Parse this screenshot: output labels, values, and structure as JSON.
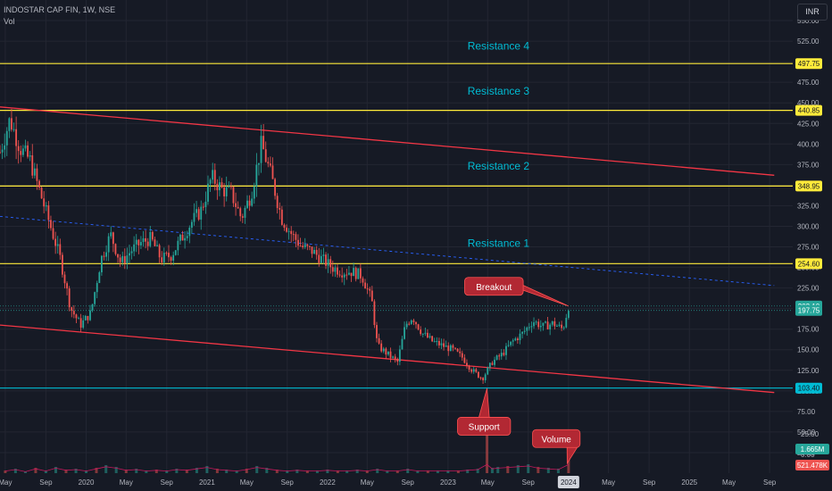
{
  "header": {
    "symbol_line": "INDOSTAR CAP FIN, 1W, NSE",
    "vol_label": "Vol"
  },
  "currency_button": "INR",
  "colors": {
    "background": "#161a25",
    "grid": "#232632",
    "up": "#26a69a",
    "down": "#ef5350",
    "resistance": "#ffeb3b",
    "support": "#00bcd4",
    "trendline": "#f23645",
    "midline": "#2962ff",
    "annotation_text": "#00bcd4",
    "callout_fill": "#b22833",
    "callout_border": "#ff5252"
  },
  "chart_data": {
    "type": "candlestick",
    "title": "INDOSTAR CAP FIN, 1W, NSE",
    "ylim": [
      0,
      575
    ],
    "yticks": [
      0,
      25,
      50,
      75,
      100,
      125,
      150,
      175,
      200,
      225,
      250,
      275,
      300,
      325,
      350,
      375,
      400,
      425,
      450,
      475,
      500,
      525,
      550
    ],
    "xlim": [
      "2019-04-15",
      "2025-11-10"
    ],
    "xticks": [
      {
        "label": "May",
        "date": "2019-05-01"
      },
      {
        "label": "Sep",
        "date": "2019-09-01"
      },
      {
        "label": "2020",
        "date": "2020-01-01"
      },
      {
        "label": "May",
        "date": "2020-05-01"
      },
      {
        "label": "Sep",
        "date": "2020-09-01"
      },
      {
        "label": "2021",
        "date": "2021-01-01"
      },
      {
        "label": "May",
        "date": "2021-05-01"
      },
      {
        "label": "Sep",
        "date": "2021-09-01"
      },
      {
        "label": "2022",
        "date": "2022-01-01"
      },
      {
        "label": "May",
        "date": "2022-05-01"
      },
      {
        "label": "Sep",
        "date": "2022-09-01"
      },
      {
        "label": "2023",
        "date": "2023-01-01"
      },
      {
        "label": "May",
        "date": "2023-05-01"
      },
      {
        "label": "Sep",
        "date": "2023-09-01"
      },
      {
        "label": "2024",
        "date": "2024-01-01"
      },
      {
        "label": "May",
        "date": "2024-05-01"
      },
      {
        "label": "Sep",
        "date": "2024-09-01"
      },
      {
        "label": "2025",
        "date": "2025-01-01"
      },
      {
        "label": "May",
        "date": "2025-05-01"
      },
      {
        "label": "Sep",
        "date": "2025-09-01"
      }
    ],
    "highlighted_xtick": "2024",
    "price_path": [
      {
        "date": "2019-04-15",
        "close": 390
      },
      {
        "date": "2019-05-15",
        "close": 430
      },
      {
        "date": "2019-06-15",
        "close": 395
      },
      {
        "date": "2019-07-15",
        "close": 380
      },
      {
        "date": "2019-08-15",
        "close": 340
      },
      {
        "date": "2019-09-15",
        "close": 300
      },
      {
        "date": "2019-10-15",
        "close": 260
      },
      {
        "date": "2019-11-15",
        "close": 200
      },
      {
        "date": "2019-12-15",
        "close": 180
      },
      {
        "date": "2020-01-15",
        "close": 195
      },
      {
        "date": "2020-02-15",
        "close": 260
      },
      {
        "date": "2020-03-15",
        "close": 290
      },
      {
        "date": "2020-04-15",
        "close": 255
      },
      {
        "date": "2020-05-15",
        "close": 270
      },
      {
        "date": "2020-06-15",
        "close": 280
      },
      {
        "date": "2020-07-15",
        "close": 285
      },
      {
        "date": "2020-08-15",
        "close": 260
      },
      {
        "date": "2020-09-15",
        "close": 265
      },
      {
        "date": "2020-10-15",
        "close": 285
      },
      {
        "date": "2020-11-15",
        "close": 305
      },
      {
        "date": "2020-12-15",
        "close": 320
      },
      {
        "date": "2021-01-15",
        "close": 360
      },
      {
        "date": "2021-02-15",
        "close": 345
      },
      {
        "date": "2021-03-15",
        "close": 340
      },
      {
        "date": "2021-04-15",
        "close": 310
      },
      {
        "date": "2021-05-15",
        "close": 340
      },
      {
        "date": "2021-06-15",
        "close": 400
      },
      {
        "date": "2021-07-15",
        "close": 360
      },
      {
        "date": "2021-08-15",
        "close": 310
      },
      {
        "date": "2021-09-15",
        "close": 290
      },
      {
        "date": "2021-10-15",
        "close": 275
      },
      {
        "date": "2021-11-15",
        "close": 270
      },
      {
        "date": "2021-12-15",
        "close": 260
      },
      {
        "date": "2022-01-15",
        "close": 250
      },
      {
        "date": "2022-02-15",
        "close": 245
      },
      {
        "date": "2022-03-15",
        "close": 245
      },
      {
        "date": "2022-04-15",
        "close": 240
      },
      {
        "date": "2022-05-15",
        "close": 210
      },
      {
        "date": "2022-06-01",
        "close": 155
      },
      {
        "date": "2022-07-01",
        "close": 145
      },
      {
        "date": "2022-08-01",
        "close": 135
      },
      {
        "date": "2022-08-25",
        "close": 180
      },
      {
        "date": "2022-09-15",
        "close": 190
      },
      {
        "date": "2022-10-15",
        "close": 170
      },
      {
        "date": "2022-11-15",
        "close": 160
      },
      {
        "date": "2022-12-15",
        "close": 155
      },
      {
        "date": "2023-01-15",
        "close": 150
      },
      {
        "date": "2023-02-15",
        "close": 140
      },
      {
        "date": "2023-03-15",
        "close": 125
      },
      {
        "date": "2023-04-15",
        "close": 115
      },
      {
        "date": "2023-05-15",
        "close": 135
      },
      {
        "date": "2023-06-15",
        "close": 145
      },
      {
        "date": "2023-07-15",
        "close": 160
      },
      {
        "date": "2023-08-15",
        "close": 170
      },
      {
        "date": "2023-09-15",
        "close": 185
      },
      {
        "date": "2023-10-15",
        "close": 178
      },
      {
        "date": "2023-11-15",
        "close": 182
      },
      {
        "date": "2023-12-15",
        "close": 175
      },
      {
        "date": "2024-01-01",
        "close": 203.1
      }
    ],
    "volume_bars": [
      {
        "date": "2019-05-01",
        "value": 0.3
      },
      {
        "date": "2019-06-01",
        "value": 0.5
      },
      {
        "date": "2019-07-01",
        "value": 0.2
      },
      {
        "date": "2019-08-01",
        "value": 0.6
      },
      {
        "date": "2019-09-01",
        "value": 0.3
      },
      {
        "date": "2019-10-01",
        "value": 0.7
      },
      {
        "date": "2019-11-01",
        "value": 0.4
      },
      {
        "date": "2019-12-01",
        "value": 0.5
      },
      {
        "date": "2020-01-01",
        "value": 0.3
      },
      {
        "date": "2020-02-01",
        "value": 0.6
      },
      {
        "date": "2020-03-01",
        "value": 0.9
      },
      {
        "date": "2020-04-01",
        "value": 0.7
      },
      {
        "date": "2020-05-01",
        "value": 0.4
      },
      {
        "date": "2020-06-01",
        "value": 0.5
      },
      {
        "date": "2020-07-01",
        "value": 0.3
      },
      {
        "date": "2020-08-01",
        "value": 0.4
      },
      {
        "date": "2020-09-01",
        "value": 0.3
      },
      {
        "date": "2020-10-01",
        "value": 0.5
      },
      {
        "date": "2020-11-01",
        "value": 0.4
      },
      {
        "date": "2020-12-01",
        "value": 0.6
      },
      {
        "date": "2021-01-01",
        "value": 0.8
      },
      {
        "date": "2021-02-01",
        "value": 0.5
      },
      {
        "date": "2021-03-01",
        "value": 0.4
      },
      {
        "date": "2021-04-01",
        "value": 0.3
      },
      {
        "date": "2021-05-01",
        "value": 0.5
      },
      {
        "date": "2021-06-01",
        "value": 0.8
      },
      {
        "date": "2021-07-01",
        "value": 0.6
      },
      {
        "date": "2021-08-01",
        "value": 0.4
      },
      {
        "date": "2021-09-01",
        "value": 0.3
      },
      {
        "date": "2021-10-01",
        "value": 0.4
      },
      {
        "date": "2021-11-01",
        "value": 0.3
      },
      {
        "date": "2021-12-01",
        "value": 0.3
      },
      {
        "date": "2022-01-01",
        "value": 0.4
      },
      {
        "date": "2022-02-01",
        "value": 0.3
      },
      {
        "date": "2022-03-01",
        "value": 0.3
      },
      {
        "date": "2022-04-01",
        "value": 0.4
      },
      {
        "date": "2022-05-01",
        "value": 0.3
      },
      {
        "date": "2022-06-01",
        "value": 0.5
      },
      {
        "date": "2022-07-01",
        "value": 0.3
      },
      {
        "date": "2022-08-01",
        "value": 0.3
      },
      {
        "date": "2022-09-01",
        "value": 0.5
      },
      {
        "date": "2022-10-01",
        "value": 0.3
      },
      {
        "date": "2022-11-01",
        "value": 0.3
      },
      {
        "date": "2022-12-01",
        "value": 0.3
      },
      {
        "date": "2023-01-01",
        "value": 0.3
      },
      {
        "date": "2023-02-01",
        "value": 0.3
      },
      {
        "date": "2023-03-01",
        "value": 0.4
      },
      {
        "date": "2023-04-01",
        "value": 0.5
      },
      {
        "date": "2023-04-29",
        "value": 5.5
      },
      {
        "date": "2023-05-15",
        "value": 0.6
      },
      {
        "date": "2023-06-01",
        "value": 0.7
      },
      {
        "date": "2023-07-01",
        "value": 0.8
      },
      {
        "date": "2023-08-01",
        "value": 0.9
      },
      {
        "date": "2023-09-01",
        "value": 1.0
      },
      {
        "date": "2023-10-01",
        "value": 0.7
      },
      {
        "date": "2023-11-01",
        "value": 0.6
      },
      {
        "date": "2023-12-01",
        "value": 0.5
      },
      {
        "date": "2024-01-01",
        "value": 1.665
      }
    ],
    "volume_ylim": [
      0,
      6
    ],
    "horizontal_levels": [
      {
        "price": 497.75,
        "label": "497.75",
        "kind": "resistance"
      },
      {
        "price": 440.85,
        "label": "440.85",
        "kind": "resistance"
      },
      {
        "price": 348.95,
        "label": "348.95",
        "kind": "resistance"
      },
      {
        "price": 254.6,
        "label": "254.60",
        "kind": "resistance"
      },
      {
        "price": 103.4,
        "label": "103.40",
        "kind": "support"
      }
    ],
    "price_tags": [
      {
        "price": 203.1,
        "label": "203.10",
        "color": "#26a69a"
      },
      {
        "price": 197.75,
        "label": "197.75",
        "color": "#26a69a"
      }
    ],
    "volume_tags": [
      {
        "label": "1.665M",
        "color": "#26a69a"
      },
      {
        "label": "521.478K",
        "color": "#ef5350"
      }
    ],
    "volume_axis_labels": [
      "25.00",
      "0.00"
    ],
    "trendlines": [
      {
        "from": {
          "date": "2019-04-15",
          "price": 445
        },
        "to": {
          "date": "2025-09-15",
          "price": 362
        },
        "style": "solid"
      },
      {
        "from": {
          "date": "2019-04-15",
          "price": 180
        },
        "to": {
          "date": "2025-09-15",
          "price": 98
        },
        "style": "solid"
      },
      {
        "from": {
          "date": "2019-04-15",
          "price": 312
        },
        "to": {
          "date": "2025-09-15",
          "price": 228
        },
        "style": "dashed"
      }
    ],
    "text_annotations": [
      {
        "text": "Resistance 4",
        "date": "2023-03-01",
        "price": 515
      },
      {
        "text": "Resistance 3",
        "date": "2023-03-01",
        "price": 460
      },
      {
        "text": "Resistance 2",
        "date": "2023-03-01",
        "price": 369
      },
      {
        "text": "Resistance 1",
        "date": "2023-03-01",
        "price": 275
      }
    ],
    "callouts": [
      {
        "text": "Breakout",
        "date": "2023-05-20",
        "price": 227,
        "pointer": "right"
      },
      {
        "text": "Support",
        "date": "2023-04-20",
        "price": 57,
        "pointer": "up"
      },
      {
        "text": "Volume",
        "date": "2023-11-25",
        "price": 42,
        "pointer": "down"
      }
    ]
  }
}
